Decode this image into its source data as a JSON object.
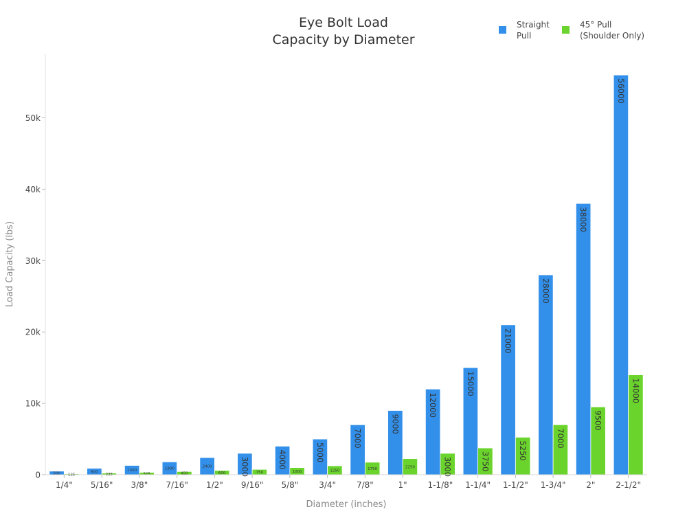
{
  "chart_data": {
    "type": "bar",
    "title_lines": [
      "Eye Bolt Load",
      "Capacity by Diameter"
    ],
    "xlabel": "Diameter (inches)",
    "ylabel": "Load Capacity (lbs)",
    "categories": [
      "1/4\"",
      "5/16\"",
      "3/8\"",
      "7/16\"",
      "1/2\"",
      "9/16\"",
      "5/8\"",
      "3/4\"",
      "7/8\"",
      "1\"",
      "1-1/8\"",
      "1-1/4\"",
      "1-1/2\"",
      "1-3/4\"",
      "2\"",
      "2-1/2\""
    ],
    "series": [
      {
        "name_lines": [
          "Straight",
          "Pull"
        ],
        "color": "#3390ea",
        "values": [
          500,
          900,
          1300,
          1800,
          2400,
          3000,
          4000,
          5000,
          7000,
          9000,
          12000,
          15000,
          21000,
          28000,
          38000,
          56000
        ]
      },
      {
        "name_lines": [
          "45° Pull",
          "(Shoulder Only)"
        ],
        "color": "#6ad42c",
        "values": [
          125,
          225,
          325,
          450,
          600,
          750,
          1000,
          1250,
          1750,
          2250,
          3000,
          3750,
          5250,
          7000,
          9500,
          14000
        ]
      }
    ],
    "ylim": [
      0,
      59000
    ],
    "yticks": [
      0,
      10000,
      20000,
      30000,
      40000,
      50000
    ],
    "ytick_labels": [
      "0",
      "10k",
      "20k",
      "30k",
      "40k",
      "50k"
    ],
    "grid": false,
    "legend_position": "top-right"
  }
}
